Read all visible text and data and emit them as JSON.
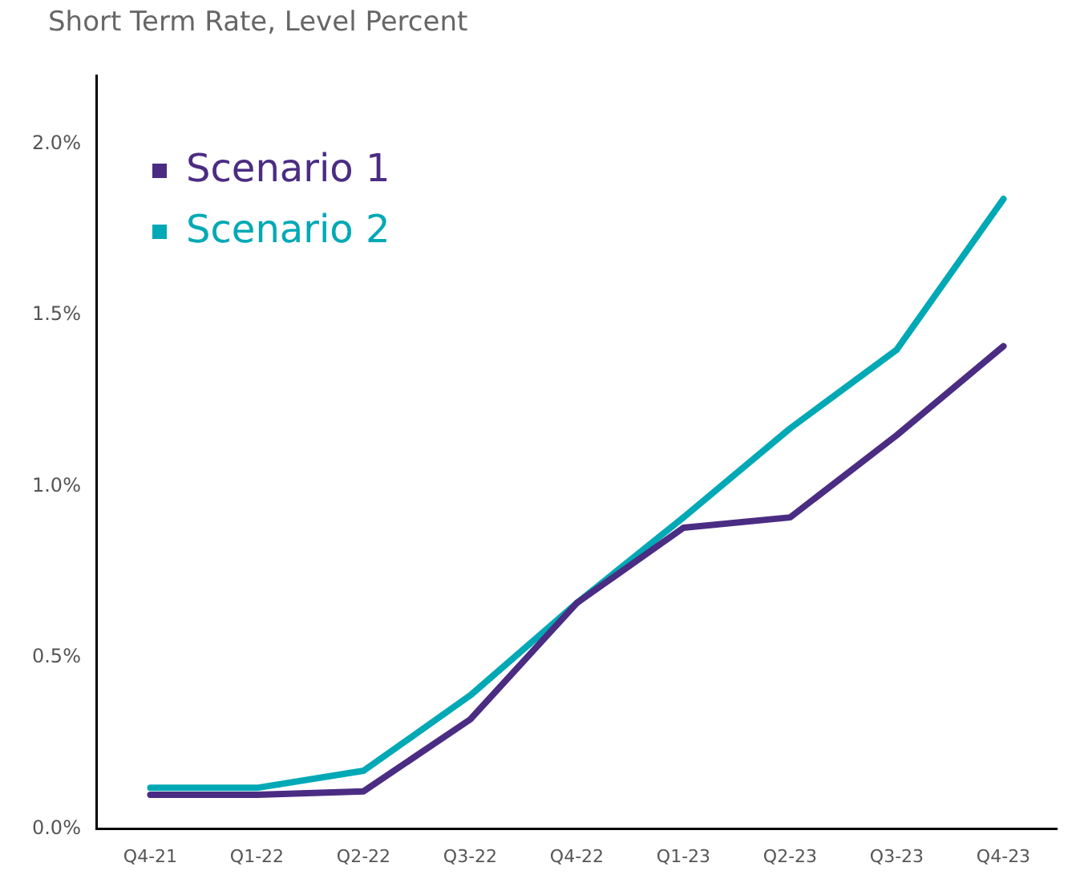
{
  "chart_data": {
    "type": "line",
    "title": "Short Term Rate, Level Percent",
    "categories": [
      "Q4-21",
      "Q1-22",
      "Q2-22",
      "Q3-22",
      "Q4-22",
      "Q1-23",
      "Q2-23",
      "Q3-23",
      "Q4-23"
    ],
    "series": [
      {
        "name": "Scenario 1",
        "color": "#4b2c83",
        "values": [
          0.1,
          0.1,
          0.11,
          0.32,
          0.66,
          0.88,
          0.91,
          1.15,
          1.41
        ]
      },
      {
        "name": "Scenario 2",
        "color": "#00a9b5",
        "values": [
          0.12,
          0.12,
          0.17,
          0.39,
          0.66,
          0.91,
          1.17,
          1.4,
          1.84
        ]
      }
    ],
    "ylim": [
      0,
      2.2
    ],
    "yticks": [
      {
        "value": 0,
        "label": "0.0%"
      },
      {
        "value": 0.5,
        "label": "0.5%"
      },
      {
        "value": 1,
        "label": "1.0%"
      },
      {
        "value": 1.5,
        "label": "1.5%"
      },
      {
        "value": 2,
        "label": "2.0%"
      }
    ],
    "grid": false,
    "legend": "top left",
    "marker": "none",
    "line_style": "solid"
  }
}
